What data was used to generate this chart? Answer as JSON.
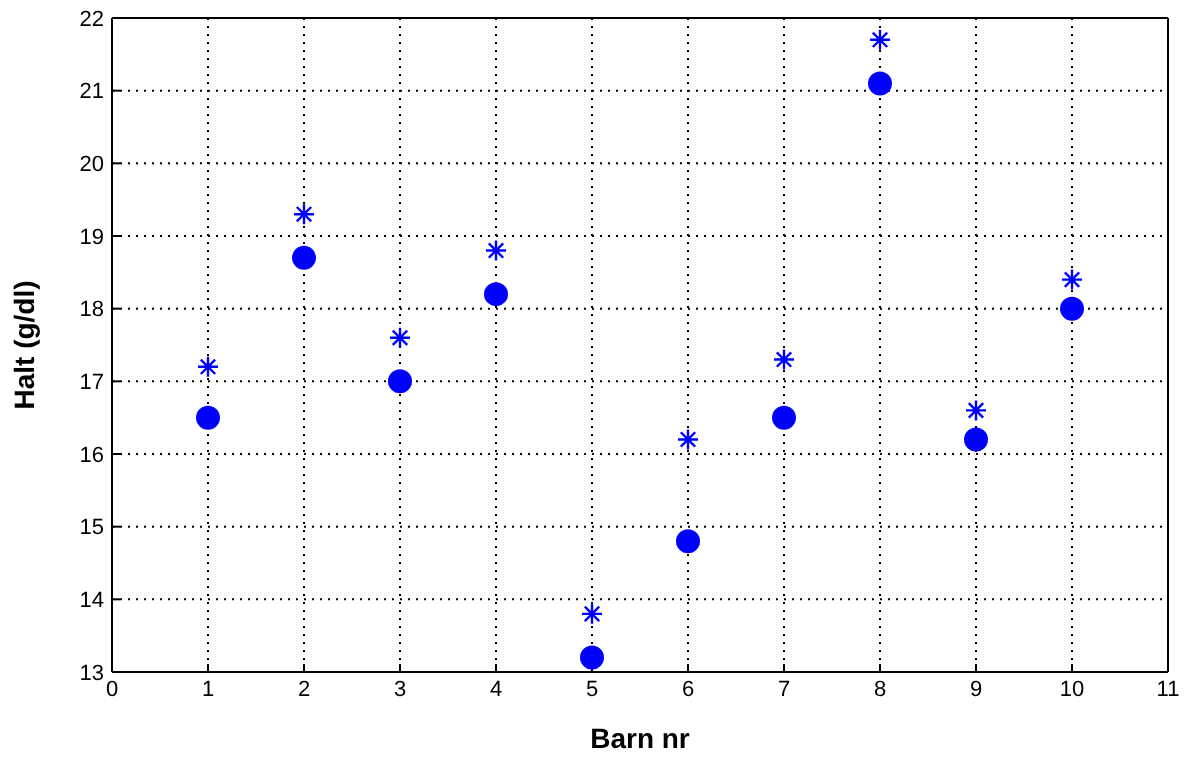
{
  "chart_data": {
    "type": "scatter",
    "xlabel": "Barn nr",
    "ylabel": "Halt (g/dl)",
    "x": [
      1,
      2,
      3,
      4,
      5,
      6,
      7,
      8,
      9,
      10
    ],
    "series": [
      {
        "color": "#0000ff",
        "marker": "circle",
        "values": [
          16.5,
          18.7,
          17.0,
          18.2,
          13.2,
          14.8,
          16.5,
          21.1,
          16.2,
          18.0
        ]
      },
      {
        "color": "#0000ff",
        "marker": "cross",
        "values": [
          17.2,
          19.3,
          17.6,
          18.8,
          13.8,
          16.2,
          17.3,
          21.7,
          16.6,
          18.4
        ]
      }
    ],
    "xlim": [
      0,
      11
    ],
    "xticks": [
      0,
      1,
      2,
      3,
      4,
      5,
      6,
      7,
      8,
      9,
      10,
      11
    ],
    "ylim": [
      13,
      22
    ],
    "yticks": [
      13,
      14,
      15,
      16,
      17,
      18,
      19,
      20,
      21,
      22
    ],
    "grid": true
  }
}
